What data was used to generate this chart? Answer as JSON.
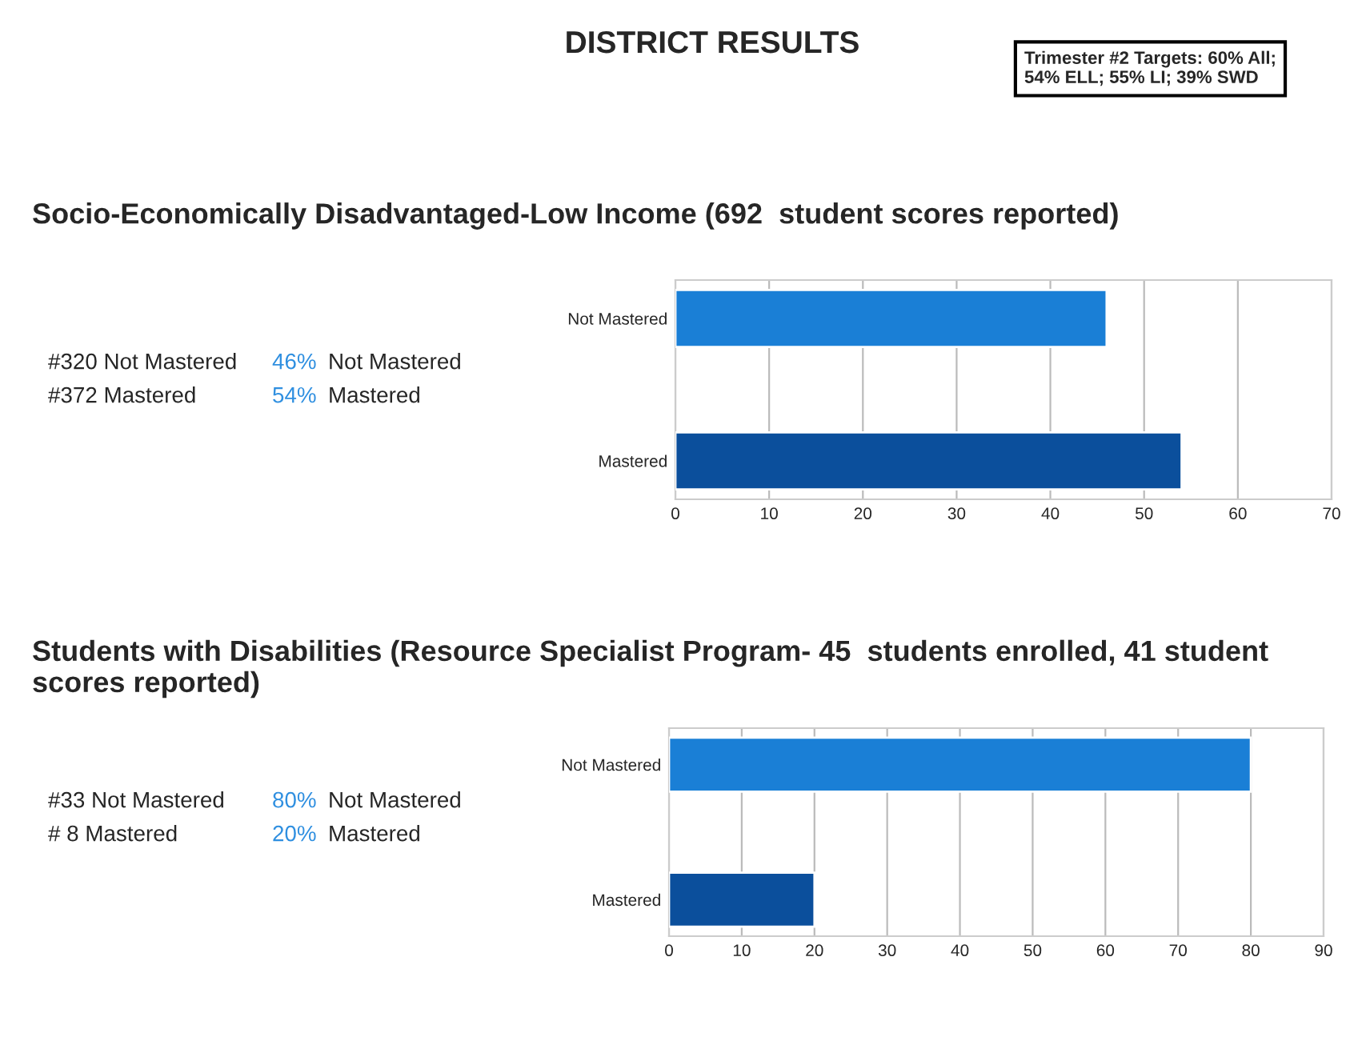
{
  "chart_data": [
    {
      "type": "bar",
      "orientation": "horizontal",
      "title": "DISTRICT RESULTS",
      "subtitle": "Socio-Economically Disadvantaged-Low Income (692  student scores reported)",
      "categories": [
        "Not Mastered",
        "Mastered"
      ],
      "values": [
        46,
        54
      ],
      "colors": [
        "#1a7fd6",
        "#0b4f9c"
      ],
      "xlim": [
        0,
        70
      ],
      "xticks": [
        0,
        10,
        20,
        30,
        40,
        50,
        60,
        70
      ],
      "grid": "x",
      "annotations": [
        "Trimester #2 Targets: 60% All;\n54% ELL; 55% LI; 39% SWD",
        "#320 Not Mastered",
        "#372 Mastered",
        "46% Not Mastered",
        "54% Mastered"
      ]
    },
    {
      "type": "bar",
      "orientation": "horizontal",
      "title": "Students with Disabilities (Resource Specialist Program- 45  students enrolled, 41 student scores reported)",
      "categories": [
        "Not Mastered",
        "Mastered"
      ],
      "values": [
        80,
        20
      ],
      "colors": [
        "#1a7fd6",
        "#0b4f9c"
      ],
      "xlim": [
        0,
        90
      ],
      "xticks": [
        0,
        10,
        20,
        30,
        40,
        50,
        60,
        70,
        80,
        90
      ],
      "grid": "x",
      "annotations": [
        "#33 Not Mastered",
        "# 8 Mastered",
        "80% Not Mastered",
        "20% Mastered"
      ]
    }
  ]
}
